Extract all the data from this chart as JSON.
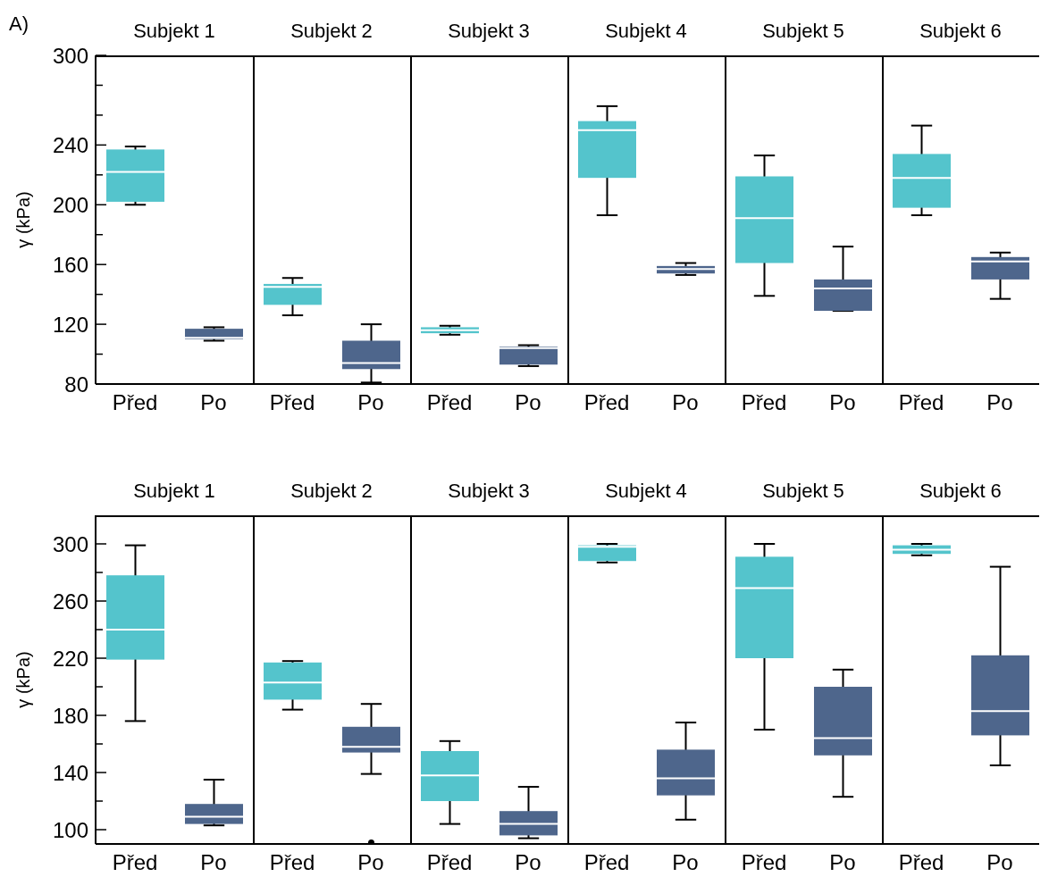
{
  "chart_data": [
    {
      "type": "box",
      "title": "Subjekt 1",
      "ylabel": "γ (kPa)",
      "annotations": [
        "A)"
      ],
      "categories": [
        "Před",
        "Po"
      ],
      "colors": [
        "#54c4cc",
        "#4e668c"
      ],
      "ylim": [
        80,
        300
      ],
      "yticks": [
        80,
        {
          "value": 100,
          "label": null
        },
        120,
        {
          "value": 140,
          "label": null
        },
        160,
        {
          "value": 180,
          "label": null
        },
        200,
        {
          "value": 220,
          "label": null
        },
        240,
        {
          "value": 260,
          "label": null
        },
        {
          "value": 280,
          "label": null
        },
        300
      ],
      "boxes": [
        {
          "low": 200,
          "q1": 202,
          "median": 222,
          "q3": 237,
          "high": 239
        },
        {
          "low": 109,
          "q1": 110,
          "median": 111,
          "q3": 117,
          "high": 118
        }
      ]
    },
    {
      "type": "box",
      "title": "Subjekt 2",
      "tick_labels": "x",
      "categories": [
        "Před",
        "Po"
      ],
      "colors": [
        "#54c4cc",
        "#4e668c"
      ],
      "ylim": [
        80,
        300
      ],
      "boxes": [
        {
          "low": 126,
          "q1": 133,
          "median": 145,
          "q3": 147,
          "high": 151
        },
        {
          "low": 81,
          "q1": 90,
          "median": 94,
          "q3": 109,
          "high": 120
        }
      ]
    },
    {
      "type": "box",
      "title": "Subjekt 3",
      "tick_labels": "x",
      "categories": [
        "Před",
        "Po"
      ],
      "colors": [
        "#54c4cc",
        "#4e668c"
      ],
      "ylim": [
        80,
        300
      ],
      "boxes": [
        {
          "low": 113,
          "q1": 114,
          "median": 116,
          "q3": 118,
          "high": 119
        },
        {
          "low": 92,
          "q1": 93,
          "median": 104,
          "q3": 105,
          "high": 106
        }
      ]
    },
    {
      "type": "box",
      "title": "Subjekt 4",
      "tick_labels": "x",
      "categories": [
        "Před",
        "Po"
      ],
      "colors": [
        "#54c4cc",
        "#4e668c"
      ],
      "ylim": [
        80,
        300
      ],
      "boxes": [
        {
          "low": 193,
          "q1": 218,
          "median": 250,
          "q3": 256,
          "high": 266
        },
        {
          "low": 153,
          "q1": 154,
          "median": 157,
          "q3": 159,
          "high": 161
        }
      ]
    },
    {
      "type": "box",
      "title": "Subjekt 5",
      "tick_labels": "x",
      "categories": [
        "Před",
        "Po"
      ],
      "colors": [
        "#54c4cc",
        "#4e668c"
      ],
      "ylim": [
        80,
        300
      ],
      "boxes": [
        {
          "low": 139,
          "q1": 161,
          "median": 191,
          "q3": 219,
          "high": 233
        },
        {
          "low": 129,
          "q1": 129,
          "median": 144,
          "q3": 150,
          "high": 172
        }
      ]
    },
    {
      "type": "box",
      "title": "Subjekt 6",
      "tick_labels": "x",
      "categories": [
        "Před",
        "Po"
      ],
      "colors": [
        "#54c4cc",
        "#4e668c"
      ],
      "ylim": [
        80,
        300
      ],
      "boxes": [
        {
          "low": 193,
          "q1": 198,
          "median": 218,
          "q3": 234,
          "high": 253
        },
        {
          "low": 137,
          "q1": 150,
          "median": 162,
          "q3": 165,
          "high": 168
        }
      ]
    },
    {
      "type": "box",
      "title": "Subjekt 1",
      "ylabel": "γ (kPa)",
      "categories": [
        "Před",
        "Po"
      ],
      "colors": [
        "#54c4cc",
        "#4e668c"
      ],
      "ylim": [
        90,
        320
      ],
      "yticks": [
        100,
        {
          "value": 120,
          "label": null
        },
        140,
        {
          "value": 160,
          "label": null
        },
        180,
        {
          "value": 200,
          "label": null
        },
        220,
        {
          "value": 240,
          "label": null
        },
        260,
        {
          "value": 280,
          "label": null
        },
        300
      ],
      "boxes": [
        {
          "low": 176,
          "q1": 219,
          "median": 240,
          "q3": 278,
          "high": 299
        },
        {
          "low": 103,
          "q1": 104,
          "median": 109,
          "q3": 118,
          "high": 135
        }
      ]
    },
    {
      "type": "box",
      "title": "Subjekt 2",
      "tick_labels": "x",
      "categories": [
        "Před",
        "Po"
      ],
      "colors": [
        "#54c4cc",
        "#4e668c"
      ],
      "ylim": [
        90,
        320
      ],
      "boxes": [
        {
          "low": 184,
          "q1": 191,
          "median": 203,
          "q3": 217,
          "high": 218
        },
        {
          "low": 139,
          "q1": 154,
          "median": 158,
          "q3": 172,
          "high": 188,
          "outliers": [
            91
          ]
        }
      ]
    },
    {
      "type": "box",
      "title": "Subjekt 3",
      "tick_labels": "x",
      "categories": [
        "Před",
        "Po"
      ],
      "colors": [
        "#54c4cc",
        "#4e668c"
      ],
      "ylim": [
        90,
        320
      ],
      "boxes": [
        {
          "low": 104,
          "q1": 120,
          "median": 138,
          "q3": 155,
          "high": 162
        },
        {
          "low": 94,
          "q1": 96,
          "median": 104,
          "q3": 113,
          "high": 130
        }
      ]
    },
    {
      "type": "box",
      "title": "Subjekt 4",
      "tick_labels": "x",
      "categories": [
        "Před",
        "Po"
      ],
      "colors": [
        "#54c4cc",
        "#4e668c"
      ],
      "ylim": [
        90,
        320
      ],
      "boxes": [
        {
          "low": 287,
          "q1": 288,
          "median": 298,
          "q3": 299,
          "high": 300
        },
        {
          "low": 107,
          "q1": 124,
          "median": 136,
          "q3": 156,
          "high": 175
        }
      ]
    },
    {
      "type": "box",
      "title": "Subjekt 5",
      "tick_labels": "x",
      "categories": [
        "Před",
        "Po"
      ],
      "colors": [
        "#54c4cc",
        "#4e668c"
      ],
      "ylim": [
        90,
        320
      ],
      "boxes": [
        {
          "low": 170,
          "q1": 220,
          "median": 269,
          "q3": 291,
          "high": 300
        },
        {
          "low": 123,
          "q1": 152,
          "median": 164,
          "q3": 200,
          "high": 212
        }
      ]
    },
    {
      "type": "box",
      "title": "Subjekt 6",
      "tick_labels": "x",
      "categories": [
        "Před",
        "Po"
      ],
      "colors": [
        "#54c4cc",
        "#4e668c"
      ],
      "ylim": [
        90,
        320
      ],
      "boxes": [
        {
          "low": 292,
          "q1": 293,
          "median": 296,
          "q3": 299,
          "high": 300
        },
        {
          "low": 145,
          "q1": 166,
          "median": 183,
          "q3": 222,
          "high": 284
        }
      ]
    }
  ]
}
